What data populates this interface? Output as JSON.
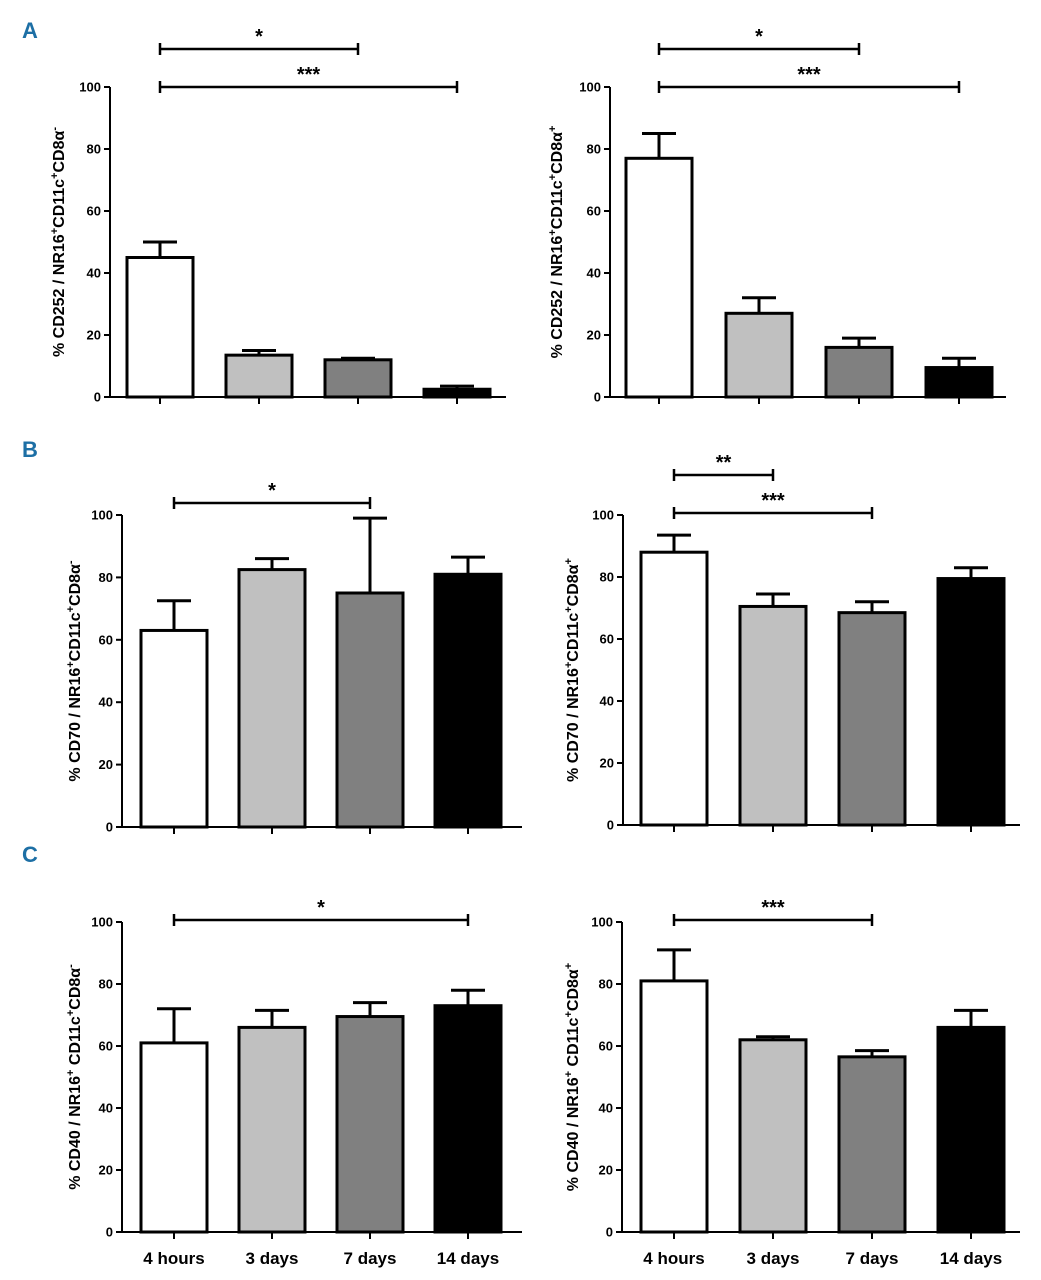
{
  "figure": {
    "categories": [
      "4 hours",
      "3 days",
      "7 days",
      "14 days"
    ],
    "bar_colors": [
      "#ffffff",
      "#c0c0c0",
      "#808080",
      "#000000"
    ],
    "panel_labels": [
      "A",
      "B",
      "C"
    ]
  },
  "chart_data": [
    {
      "id": "A-left",
      "type": "bar",
      "panel": "A",
      "ylabel": {
        "prefix": "% CD252 / NR16",
        "sup1": "+",
        "mid1": "CD11c",
        "sup2": "+",
        "mid2": "CD8α",
        "sup3": "-"
      },
      "ylim": [
        0,
        100
      ],
      "yticks": [
        0,
        20,
        40,
        60,
        80,
        100
      ],
      "categories": [
        "4 hours",
        "3 days",
        "7 days",
        "14 days"
      ],
      "values": [
        45,
        13.5,
        12,
        2.5
      ],
      "errors": [
        5,
        1.5,
        0.5,
        1
      ],
      "significance": [
        {
          "from": 0,
          "to": 2,
          "label": "*"
        },
        {
          "from": 0,
          "to": 3,
          "label": "***"
        }
      ]
    },
    {
      "id": "A-right",
      "type": "bar",
      "panel": "A",
      "ylabel": {
        "prefix": "% CD252 / NR16",
        "sup1": "+",
        "mid1": "CD11c",
        "sup2": "+",
        "mid2": "CD8α",
        "sup3": "+"
      },
      "ylim": [
        0,
        100
      ],
      "yticks": [
        0,
        20,
        40,
        60,
        80,
        100
      ],
      "categories": [
        "4 hours",
        "3 days",
        "7 days",
        "14 days"
      ],
      "values": [
        77,
        27,
        16,
        9.5
      ],
      "errors": [
        8,
        5,
        3,
        3
      ],
      "significance": [
        {
          "from": 0,
          "to": 2,
          "label": "*"
        },
        {
          "from": 0,
          "to": 3,
          "label": "***"
        }
      ]
    },
    {
      "id": "B-left",
      "type": "bar",
      "panel": "B",
      "ylabel": {
        "prefix": "% CD70 / NR16",
        "sup1": "+",
        "mid1": "CD11c",
        "sup2": "+",
        "mid2": "CD8α",
        "sup3": "-"
      },
      "ylim": [
        0,
        100
      ],
      "yticks": [
        0,
        20,
        40,
        60,
        80,
        100
      ],
      "categories": [
        "4 hours",
        "3 days",
        "7 days",
        "14 days"
      ],
      "values": [
        63,
        82.5,
        75,
        81
      ],
      "errors": [
        9.5,
        3.5,
        24,
        5.5
      ],
      "significance": [
        {
          "from": 0,
          "to": 2,
          "label": "*"
        }
      ]
    },
    {
      "id": "B-right",
      "type": "bar",
      "panel": "B",
      "ylabel": {
        "prefix": "% CD70 / NR16",
        "sup1": "+",
        "mid1": "CD11c",
        "sup2": "+",
        "mid2": "CD8α",
        "sup3": "+"
      },
      "ylim": [
        0,
        100
      ],
      "yticks": [
        0,
        20,
        40,
        60,
        80,
        100
      ],
      "categories": [
        "4 hours",
        "3 days",
        "7 days",
        "14 days"
      ],
      "values": [
        88,
        70.5,
        68.5,
        79.5
      ],
      "errors": [
        5.5,
        4,
        3.5,
        3.5
      ],
      "significance": [
        {
          "from": 0,
          "to": 1,
          "label": "**"
        },
        {
          "from": 0,
          "to": 2,
          "label": "***"
        }
      ]
    },
    {
      "id": "C-left",
      "type": "bar",
      "panel": "C",
      "ylabel": {
        "prefix": "% CD40 / NR16",
        "sup1": "+",
        "mid1": " CD11c",
        "sup2": "+",
        "mid2": "CD8α",
        "sup3": "-"
      },
      "ylim": [
        0,
        100
      ],
      "yticks": [
        0,
        20,
        40,
        60,
        80,
        100
      ],
      "categories": [
        "4 hours",
        "3 days",
        "7 days",
        "14 days"
      ],
      "values": [
        61,
        66,
        69.5,
        73
      ],
      "errors": [
        11,
        5.5,
        4.5,
        5
      ],
      "significance": [
        {
          "from": 0,
          "to": 3,
          "label": "*"
        }
      ]
    },
    {
      "id": "C-right",
      "type": "bar",
      "panel": "C",
      "ylabel": {
        "prefix": "% CD40 / NR16",
        "sup1": "+",
        "mid1": " CD11c",
        "sup2": "+",
        "mid2": "CD8α",
        "sup3": "+"
      },
      "ylim": [
        0,
        100
      ],
      "yticks": [
        0,
        20,
        40,
        60,
        80,
        100
      ],
      "categories": [
        "4 hours",
        "3 days",
        "7 days",
        "14 days"
      ],
      "values": [
        81,
        62,
        56.5,
        66
      ],
      "errors": [
        10,
        1,
        2,
        5.5
      ],
      "significance": [
        {
          "from": 0,
          "to": 2,
          "label": "***"
        }
      ]
    }
  ]
}
